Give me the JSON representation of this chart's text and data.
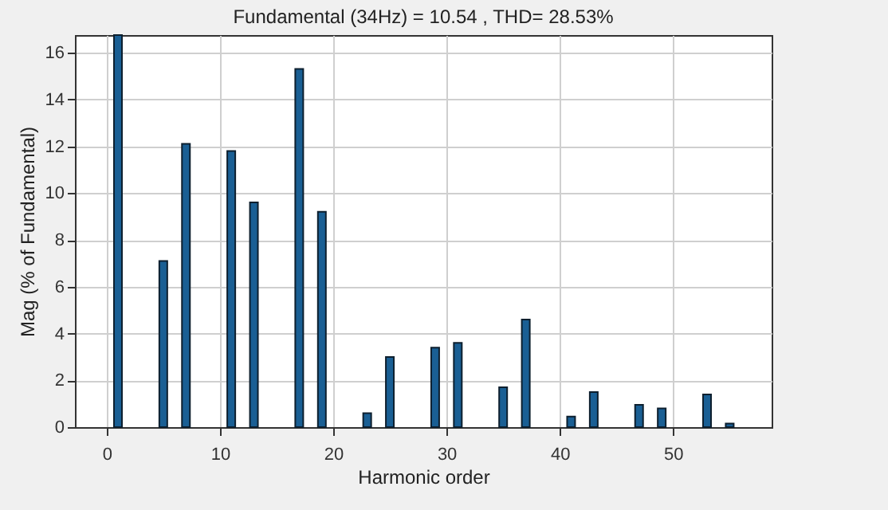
{
  "chart_data": {
    "type": "bar",
    "title": "Fundamental (34Hz) = 10.54 , THD= 28.53%",
    "xlabel": "Harmonic order",
    "ylabel": "Mag (% of Fundamental)",
    "x": [
      1,
      5,
      7,
      11,
      13,
      17,
      19,
      23,
      25,
      29,
      31,
      35,
      37,
      41,
      43,
      47,
      49,
      53,
      55
    ],
    "values": [
      16.75,
      7.1,
      12.1,
      11.8,
      9.6,
      15.3,
      9.2,
      0.6,
      3.0,
      3.4,
      3.6,
      1.7,
      4.6,
      0.45,
      1.5,
      0.95,
      0.8,
      1.4,
      0.15
    ],
    "color": "#1a5f94",
    "xlim": [
      -2.8,
      58.7
    ],
    "xticks": [
      0,
      10,
      20,
      30,
      40,
      50
    ],
    "ylim": [
      0,
      16.75
    ],
    "yticks": [
      0,
      2,
      4,
      6,
      8,
      10,
      12,
      14,
      16
    ],
    "grid": true
  }
}
